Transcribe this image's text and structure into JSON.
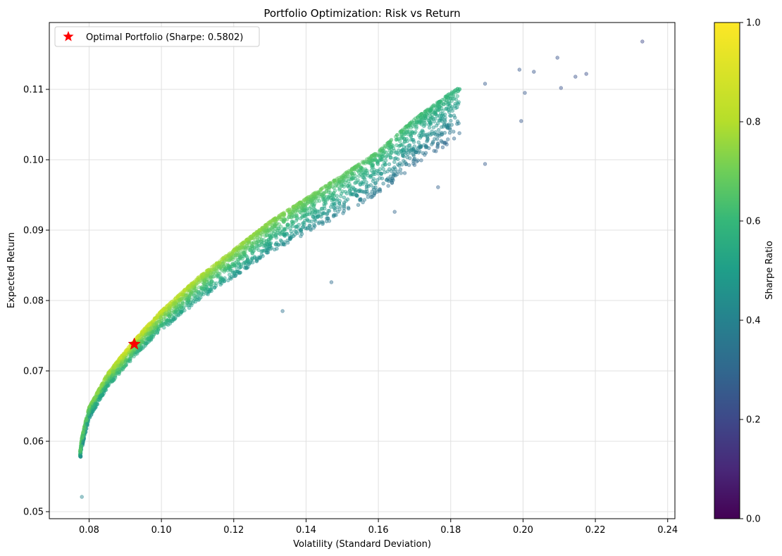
{
  "chart_data": {
    "type": "scatter",
    "title": "Portfolio Optimization: Risk vs Return",
    "xlabel": "Volatility (Standard Deviation)",
    "ylabel": "Expected Return",
    "xlim": [
      0.069,
      0.242
    ],
    "ylim": [
      0.049,
      0.1195
    ],
    "xticks": [
      0.08,
      0.1,
      0.12,
      0.14,
      0.16,
      0.18,
      0.2,
      0.22,
      0.24
    ],
    "xtick_labels": [
      "0.08",
      "0.10",
      "0.12",
      "0.14",
      "0.16",
      "0.18",
      "0.20",
      "0.22",
      "0.24"
    ],
    "yticks": [
      0.05,
      0.06,
      0.07,
      0.08,
      0.09,
      0.1,
      0.11
    ],
    "ytick_labels": [
      "0.05",
      "0.06",
      "0.07",
      "0.08",
      "0.09",
      "0.10",
      "0.11"
    ],
    "grid": true,
    "colormap": "viridis",
    "colorbar": {
      "label": "Sharpe Ratio",
      "range": [
        0.0,
        1.0
      ],
      "ticks": [
        0.0,
        0.2,
        0.4,
        0.6,
        0.8,
        1.0
      ],
      "tick_labels": [
        "0.0",
        "0.2",
        "0.4",
        "0.6",
        "0.8",
        "1.0"
      ]
    },
    "legend": {
      "position": "upper-left",
      "entries": [
        "Optimal Portfolio (Sharpe: 0.5802)"
      ]
    },
    "optimal_portfolio": {
      "volatility": 0.0925,
      "return": 0.0738,
      "sharpe": 0.5802,
      "marker": "star",
      "color": "#ff0000"
    },
    "simulated_portfolios": {
      "count": 5000,
      "frontier": [
        [
          0.077,
          0.0558
        ],
        [
          0.0775,
          0.0585
        ],
        [
          0.078,
          0.0605
        ],
        [
          0.079,
          0.0628
        ],
        [
          0.08,
          0.0648
        ],
        [
          0.085,
          0.0695
        ],
        [
          0.09,
          0.0728
        ],
        [
          0.095,
          0.0758
        ],
        [
          0.1,
          0.0785
        ],
        [
          0.11,
          0.0832
        ],
        [
          0.12,
          0.0872
        ],
        [
          0.13,
          0.0912
        ],
        [
          0.14,
          0.0945
        ],
        [
          0.15,
          0.0978
        ],
        [
          0.16,
          0.1012
        ],
        [
          0.17,
          0.1058
        ],
        [
          0.18,
          0.1095
        ]
      ],
      "outliers": [
        [
          0.078,
          0.0521
        ],
        [
          0.233,
          0.1168
        ],
        [
          0.2095,
          0.1145
        ],
        [
          0.2175,
          0.1122
        ],
        [
          0.2145,
          0.1118
        ],
        [
          0.2105,
          0.1102
        ],
        [
          0.199,
          0.1128
        ],
        [
          0.1895,
          0.1108
        ],
        [
          0.2005,
          0.1095
        ],
        [
          0.203,
          0.1125
        ],
        [
          0.1995,
          0.1055
        ],
        [
          0.1895,
          0.0994
        ],
        [
          0.147,
          0.0826
        ],
        [
          0.1335,
          0.0785
        ],
        [
          0.1645,
          0.0926
        ],
        [
          0.1765,
          0.0961
        ]
      ]
    },
    "colors": {
      "optimal_marker": "#ff0000",
      "grid": "#e0e0e0",
      "axes": "#000000"
    }
  }
}
